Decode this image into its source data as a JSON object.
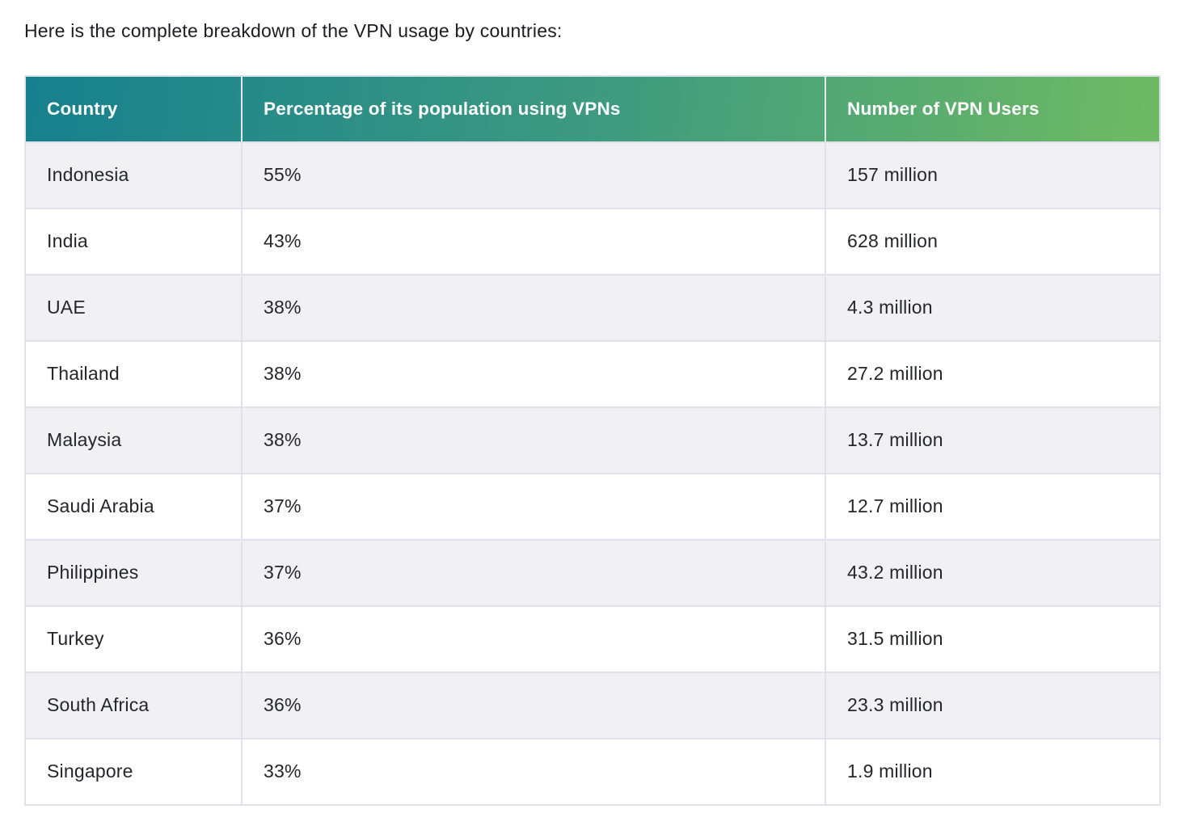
{
  "page": {
    "intro_text": "Here is the complete breakdown of the VPN usage by countries:"
  },
  "colors": {
    "header_gradient_start": "#16808e",
    "header_gradient_mid": "#3f9b7f",
    "header_gradient_end": "#6fba63",
    "header_text": "#ffffff",
    "row_alt_background": "#f1f1f3",
    "row_background": "#ffffff",
    "cell_border": "#dfe2ec",
    "body_text": "#25262c"
  },
  "table": {
    "columns": [
      "Country",
      "Percentage of its population using VPNs",
      "Number of VPN Users"
    ],
    "rows": [
      {
        "country": "Indonesia",
        "percentage": "55%",
        "users": "157 million"
      },
      {
        "country": "India",
        "percentage": "43%",
        "users": "628 million"
      },
      {
        "country": "UAE",
        "percentage": "38%",
        "users": "4.3 million"
      },
      {
        "country": "Thailand",
        "percentage": "38%",
        "users": "27.2 million"
      },
      {
        "country": "Malaysia",
        "percentage": "38%",
        "users": "13.7 million"
      },
      {
        "country": "Saudi Arabia",
        "percentage": "37%",
        "users": "12.7 million"
      },
      {
        "country": "Philippines",
        "percentage": "37%",
        "users": "43.2 million"
      },
      {
        "country": "Turkey",
        "percentage": "36%",
        "users": "31.5 million"
      },
      {
        "country": "South Africa",
        "percentage": "36%",
        "users": "23.3 million"
      },
      {
        "country": "Singapore",
        "percentage": "33%",
        "users": "1.9 million"
      }
    ]
  },
  "chart_data": {
    "type": "table",
    "columns": [
      "Country",
      "Percentage of its population using VPNs",
      "Number of VPN Users"
    ],
    "rows": [
      [
        "Indonesia",
        "55%",
        "157 million"
      ],
      [
        "India",
        "43%",
        "628 million"
      ],
      [
        "UAE",
        "38%",
        "4.3 million"
      ],
      [
        "Thailand",
        "38%",
        "27.2 million"
      ],
      [
        "Malaysia",
        "38%",
        "13.7 million"
      ],
      [
        "Saudi Arabia",
        "37%",
        "12.7 million"
      ],
      [
        "Philippines",
        "37%",
        "43.2 million"
      ],
      [
        "Turkey",
        "36%",
        "31.5 million"
      ],
      [
        "South Africa",
        "36%",
        "23.3 million"
      ],
      [
        "Singapore",
        "33%",
        "1.9 million"
      ]
    ]
  }
}
